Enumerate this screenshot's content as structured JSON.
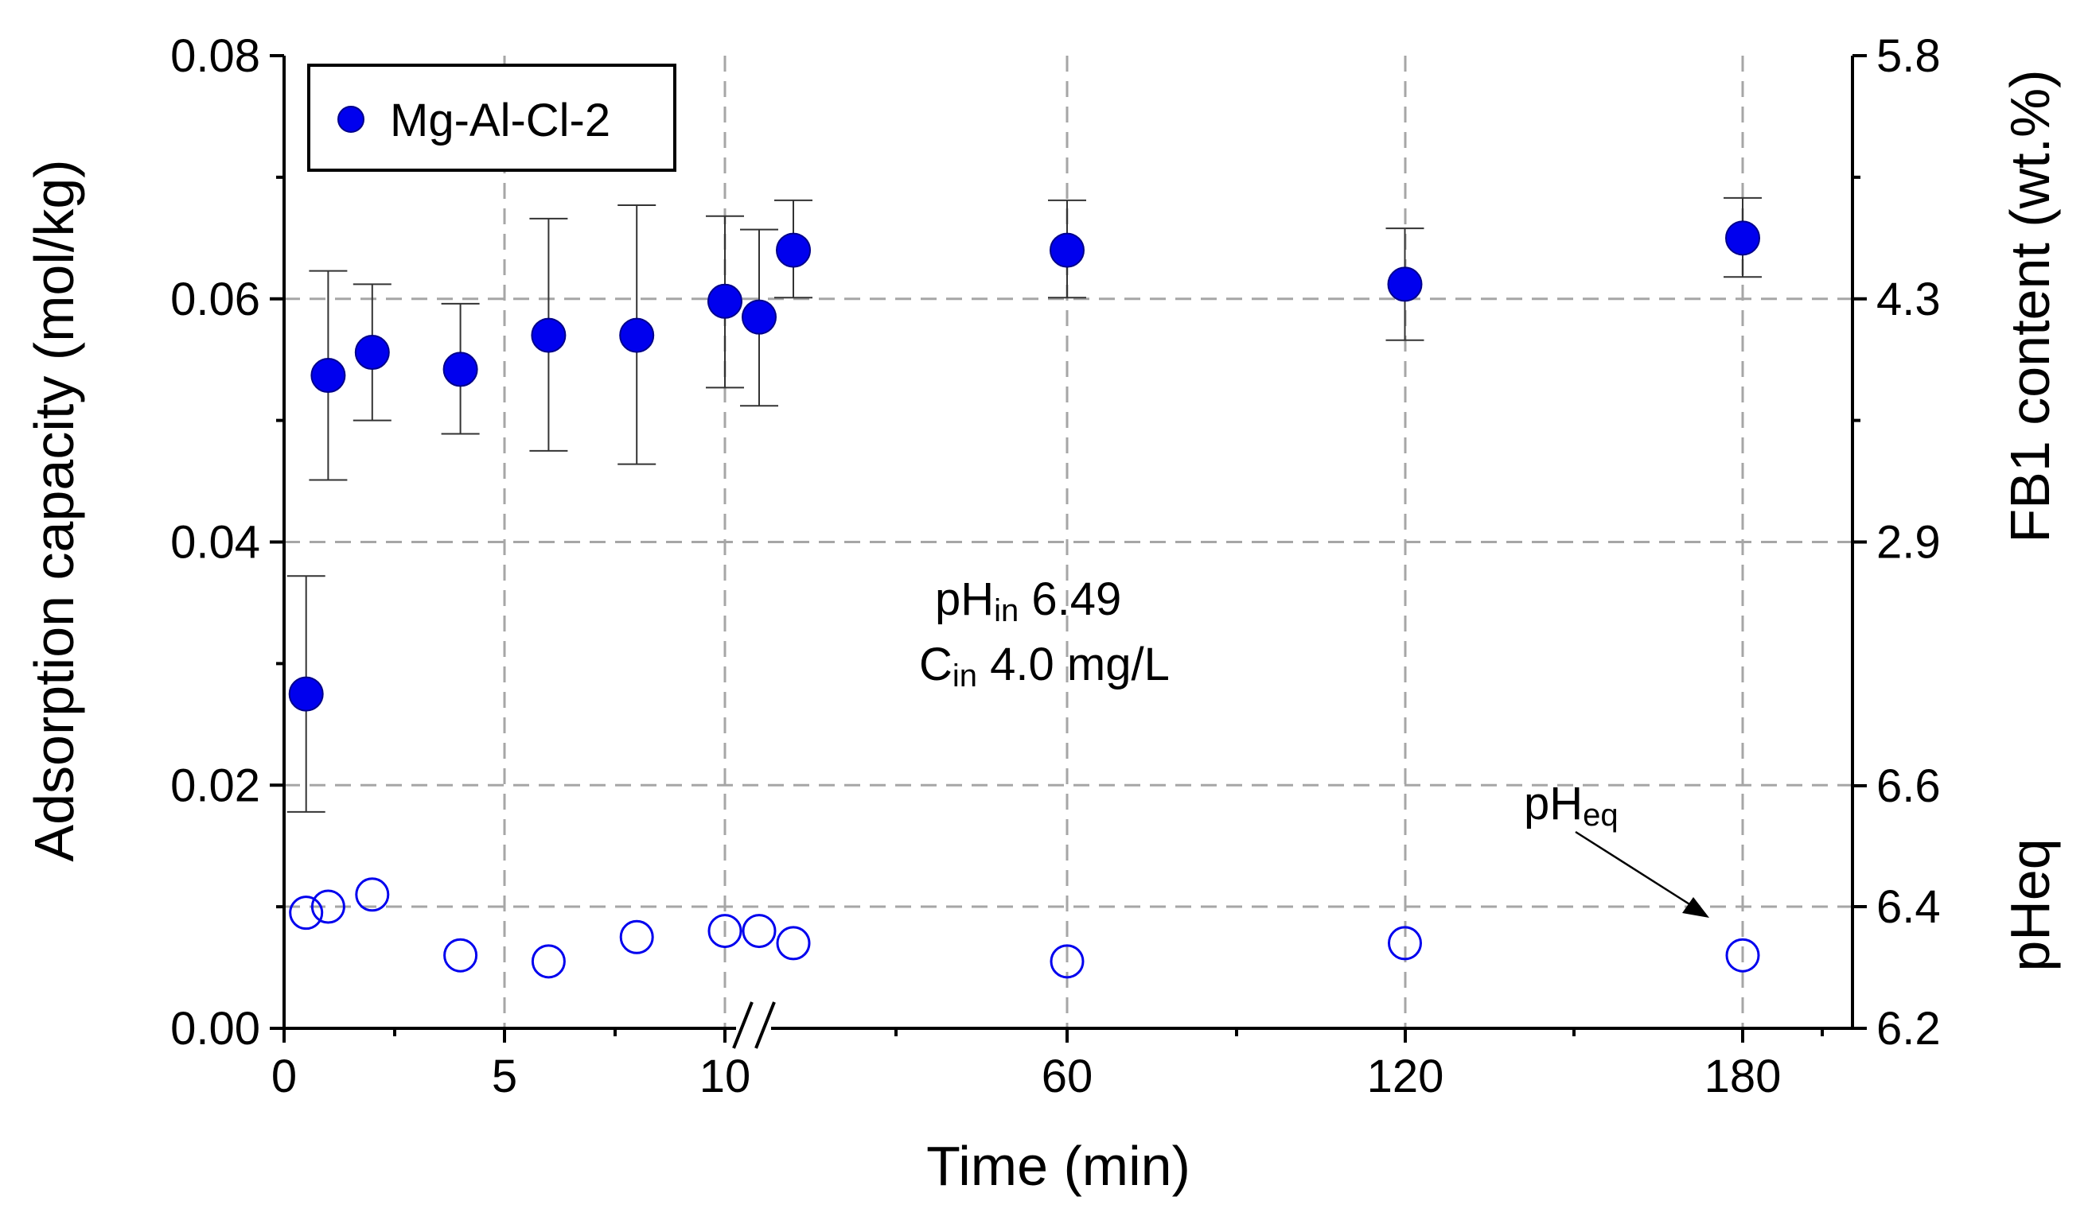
{
  "chart_data": {
    "type": "scatter",
    "xlabel": "Time (min)",
    "ylabel_left": "Adsorption capacity (mol/kg)",
    "ylabel_right_top": "FB1 content (wt.%)",
    "ylabel_right_bottom": "pHeq",
    "ylim_left": [
      0,
      0.08
    ],
    "left_ticks": [
      "0.00",
      "0.02",
      "0.04",
      "0.06",
      "0.08"
    ],
    "right_ticks_fb1": [
      "2.9",
      "4.3",
      "5.8"
    ],
    "right_ticks_ph": [
      "6.2",
      "6.4",
      "6.6"
    ],
    "x_tick_labels": [
      "0",
      "5",
      "10",
      "60",
      "120",
      "180"
    ],
    "x_axis_break": "//",
    "grid": true,
    "legend": {
      "position": "top-left",
      "entries": [
        "Mg-Al-Cl-2"
      ]
    },
    "annotations": {
      "ph_in_main": "pH",
      "ph_in_sub": "in",
      "ph_in_value": "6.49",
      "c_in_main": "C",
      "c_in_sub": "in",
      "c_in_value": "4.0 mg/L",
      "ph_eq_main": "pH",
      "ph_eq_sub": "eq"
    },
    "series": [
      {
        "name": "Mg-Al-Cl-2",
        "marker": "filled-circle",
        "color": "#0000ee",
        "x_time_min": [
          0.5,
          1,
          2,
          4,
          6,
          8,
          10,
          15,
          20,
          60,
          120,
          180
        ],
        "y": [
          0.0275,
          0.0537,
          0.0556,
          0.0542,
          0.057,
          0.057,
          0.0598,
          0.0585,
          0.064,
          0.064,
          0.0612,
          0.065
        ],
        "y_err_upper": [
          0.0372,
          0.0623,
          0.0612,
          0.0596,
          0.0666,
          0.0677,
          0.0668,
          0.0657,
          0.0681,
          0.0681,
          0.0658,
          0.0683
        ],
        "y_err_lower": [
          0.0178,
          0.0451,
          0.05,
          0.0489,
          0.0475,
          0.0464,
          0.0527,
          0.0512,
          0.0601,
          0.0601,
          0.0566,
          0.0618
        ]
      },
      {
        "name": "pHeq",
        "marker": "open-circle",
        "color": "#0000ee",
        "x_time_min": [
          0.5,
          1,
          2,
          4,
          6,
          8,
          10,
          15,
          20,
          60,
          120,
          180
        ],
        "pH": [
          6.39,
          6.4,
          6.42,
          6.32,
          6.31,
          6.35,
          6.36,
          6.36,
          6.34,
          6.31,
          6.34,
          6.32
        ]
      }
    ]
  }
}
